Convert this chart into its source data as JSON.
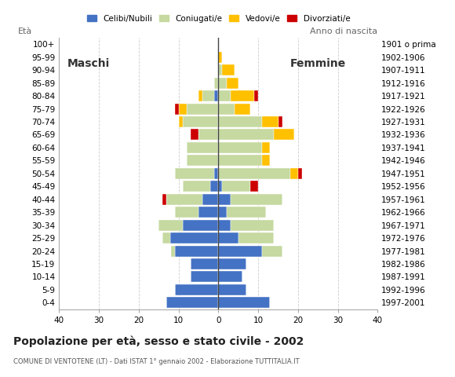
{
  "age_groups": [
    "0-4",
    "5-9",
    "10-14",
    "15-19",
    "20-24",
    "25-29",
    "30-34",
    "35-39",
    "40-44",
    "45-49",
    "50-54",
    "55-59",
    "60-64",
    "65-69",
    "70-74",
    "75-79",
    "80-84",
    "85-89",
    "90-94",
    "95-99",
    "100+"
  ],
  "birth_years": [
    "1997-2001",
    "1992-1996",
    "1987-1991",
    "1982-1986",
    "1977-1981",
    "1972-1976",
    "1967-1971",
    "1962-1966",
    "1957-1961",
    "1952-1956",
    "1947-1951",
    "1942-1946",
    "1937-1941",
    "1932-1936",
    "1927-1931",
    "1922-1926",
    "1917-1921",
    "1912-1916",
    "1907-1911",
    "1902-1906",
    "1901 o prima"
  ],
  "males": {
    "celibinubili": [
      13,
      11,
      7,
      7,
      11,
      12,
      9,
      5,
      4,
      2,
      1,
      0,
      0,
      0,
      0,
      0,
      1,
      0,
      0,
      0,
      0
    ],
    "coniugati": [
      0,
      0,
      0,
      0,
      1,
      2,
      6,
      6,
      9,
      7,
      10,
      8,
      8,
      5,
      9,
      8,
      3,
      1,
      0,
      0,
      0
    ],
    "vedovi": [
      0,
      0,
      0,
      0,
      0,
      0,
      0,
      0,
      0,
      0,
      0,
      0,
      0,
      0,
      1,
      2,
      1,
      0,
      0,
      0,
      0
    ],
    "divorziati": [
      0,
      0,
      0,
      0,
      0,
      0,
      0,
      0,
      1,
      0,
      0,
      0,
      0,
      2,
      0,
      1,
      0,
      0,
      0,
      0,
      0
    ]
  },
  "females": {
    "celibenubili": [
      13,
      7,
      6,
      7,
      11,
      5,
      3,
      2,
      3,
      1,
      0,
      0,
      0,
      0,
      0,
      0,
      0,
      0,
      0,
      0,
      0
    ],
    "coniugate": [
      0,
      0,
      0,
      0,
      5,
      9,
      11,
      10,
      13,
      7,
      18,
      11,
      11,
      14,
      11,
      4,
      3,
      2,
      1,
      0,
      0
    ],
    "vedove": [
      0,
      0,
      0,
      0,
      0,
      0,
      0,
      0,
      0,
      0,
      2,
      2,
      2,
      5,
      4,
      4,
      6,
      3,
      3,
      1,
      0
    ],
    "divorziate": [
      0,
      0,
      0,
      0,
      0,
      0,
      0,
      0,
      0,
      2,
      1,
      0,
      0,
      0,
      1,
      0,
      1,
      0,
      0,
      0,
      0
    ]
  },
  "colors": {
    "celibinubili": "#4472c4",
    "coniugati": "#c5d9a0",
    "vedovi": "#ffc000",
    "divorziati": "#cc0000"
  },
  "title": "Popolazione per età, sesso e stato civile - 2002",
  "subtitle": "COMUNE DI VENTOTENE (LT) - Dati ISTAT 1° gennaio 2002 - Elaborazione TUTTITALIA.IT",
  "xlabel_left": "Maschi",
  "xlabel_right": "Femmine",
  "ylabel_left": "Età",
  "ylabel_right": "Anno di nascita",
  "xlim": 40,
  "legend_labels": [
    "Celibi/Nubili",
    "Coniugati/e",
    "Vedovi/e",
    "Divorziati/e"
  ],
  "background_color": "#ffffff",
  "grid_color": "#cccccc"
}
